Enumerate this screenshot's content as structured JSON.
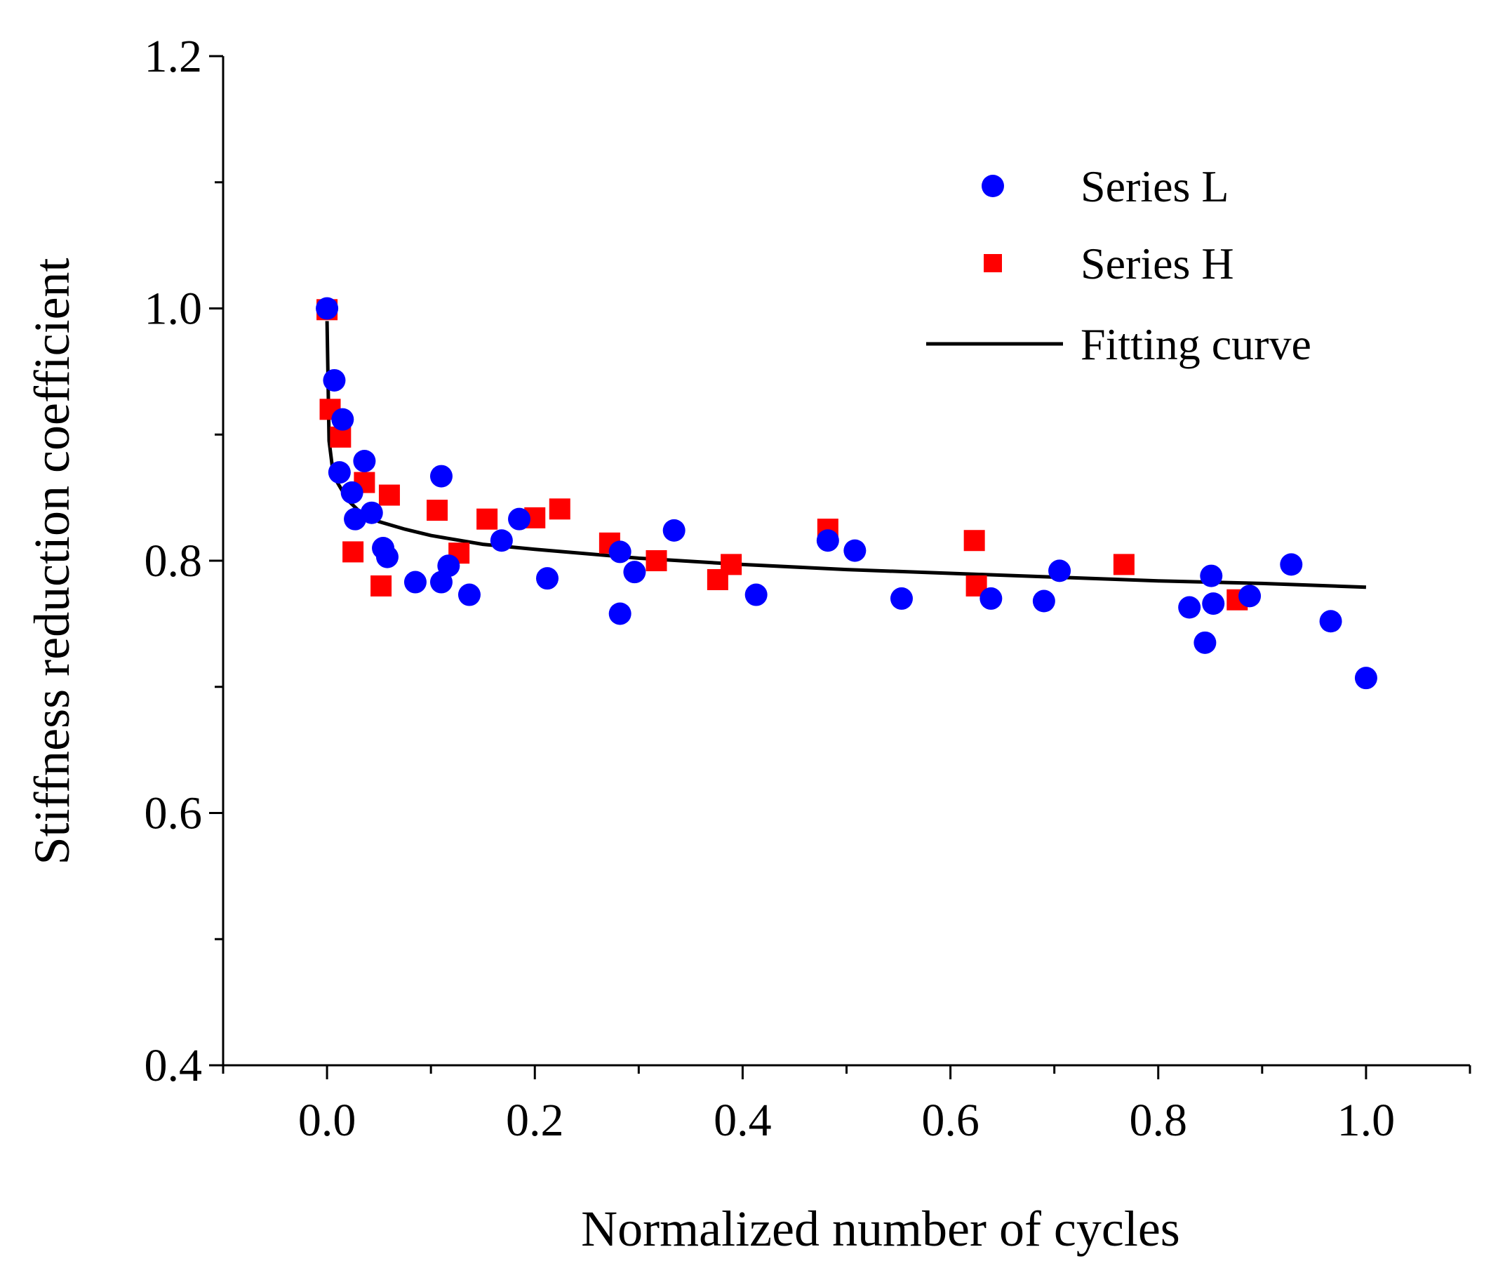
{
  "chart_data": {
    "type": "scatter",
    "title": "",
    "xlabel": "Normalized number of cycles",
    "ylabel": "Stiffness reduction coefficient",
    "xlim": [
      -0.1,
      1.1
    ],
    "ylim": [
      0.4,
      1.2
    ],
    "xticks": [
      "0.0",
      "0.2",
      "0.4",
      "0.6",
      "0.8",
      "1.0"
    ],
    "yticks": [
      "0.4",
      "0.6",
      "0.8",
      "1.0",
      "1.2"
    ],
    "grid": false,
    "legend_position": "top-right",
    "series": [
      {
        "name": "Series L",
        "marker": "circle",
        "color": "#0000ff",
        "points": [
          [
            0.0,
            1.0
          ],
          [
            0.007,
            0.943
          ],
          [
            0.015,
            0.912
          ],
          [
            0.012,
            0.87
          ],
          [
            0.024,
            0.854
          ],
          [
            0.027,
            0.833
          ],
          [
            0.036,
            0.879
          ],
          [
            0.043,
            0.838
          ],
          [
            0.054,
            0.81
          ],
          [
            0.058,
            0.803
          ],
          [
            0.085,
            0.783
          ],
          [
            0.11,
            0.867
          ],
          [
            0.11,
            0.783
          ],
          [
            0.117,
            0.796
          ],
          [
            0.137,
            0.773
          ],
          [
            0.168,
            0.816
          ],
          [
            0.185,
            0.833
          ],
          [
            0.212,
            0.786
          ],
          [
            0.282,
            0.807
          ],
          [
            0.282,
            0.758
          ],
          [
            0.296,
            0.791
          ],
          [
            0.334,
            0.824
          ],
          [
            0.413,
            0.773
          ],
          [
            0.482,
            0.816
          ],
          [
            0.508,
            0.808
          ],
          [
            0.553,
            0.77
          ],
          [
            0.639,
            0.77
          ],
          [
            0.69,
            0.768
          ],
          [
            0.705,
            0.792
          ],
          [
            0.83,
            0.763
          ],
          [
            0.845,
            0.735
          ],
          [
            0.851,
            0.788
          ],
          [
            0.853,
            0.766
          ],
          [
            0.888,
            0.772
          ],
          [
            0.928,
            0.797
          ],
          [
            0.966,
            0.752
          ],
          [
            1.0,
            0.707
          ]
        ]
      },
      {
        "name": "Series H",
        "marker": "square",
        "color": "#ff0000",
        "points": [
          [
            0.0,
            0.999
          ],
          [
            0.003,
            0.92
          ],
          [
            0.013,
            0.898
          ],
          [
            0.025,
            0.807
          ],
          [
            0.036,
            0.862
          ],
          [
            0.052,
            0.78
          ],
          [
            0.06,
            0.852
          ],
          [
            0.106,
            0.84
          ],
          [
            0.127,
            0.806
          ],
          [
            0.154,
            0.833
          ],
          [
            0.2,
            0.834
          ],
          [
            0.224,
            0.841
          ],
          [
            0.272,
            0.814
          ],
          [
            0.317,
            0.8
          ],
          [
            0.376,
            0.785
          ],
          [
            0.389,
            0.797
          ],
          [
            0.482,
            0.825
          ],
          [
            0.623,
            0.816
          ],
          [
            0.625,
            0.78
          ],
          [
            0.767,
            0.797
          ],
          [
            0.876,
            0.769
          ]
        ]
      },
      {
        "name": "Fitting curve",
        "type": "line",
        "color": "#000000",
        "x": [
          0.0,
          0.002,
          0.005,
          0.01,
          0.02,
          0.03,
          0.05,
          0.075,
          0.1,
          0.15,
          0.2,
          0.3,
          0.4,
          0.5,
          0.6,
          0.7,
          0.8,
          0.9,
          1.0
        ],
        "y": [
          0.99,
          0.895,
          0.875,
          0.862,
          0.848,
          0.84,
          0.831,
          0.825,
          0.82,
          0.813,
          0.809,
          0.802,
          0.797,
          0.793,
          0.79,
          0.787,
          0.784,
          0.782,
          0.779
        ]
      }
    ]
  }
}
